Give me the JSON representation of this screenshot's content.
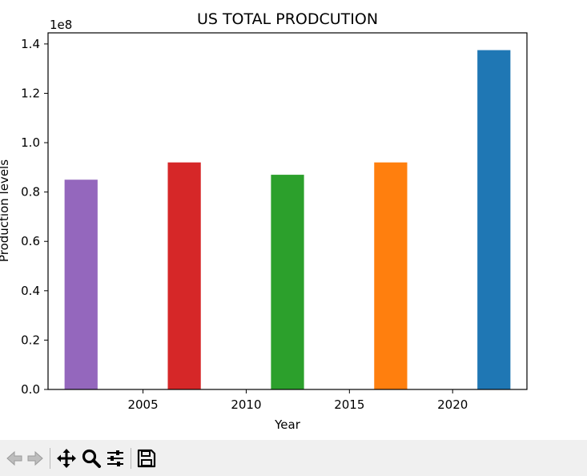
{
  "chart_data": {
    "type": "bar",
    "title": "US TOTAL PRODCUTION",
    "xlabel": "Year",
    "ylabel": "Production levels",
    "y_offset_label": "1e8",
    "x": [
      2002,
      2007,
      2012,
      2017,
      2022
    ],
    "values": [
      0.85,
      0.92,
      0.87,
      0.92,
      1.375
    ],
    "value_scale": 100000000,
    "bar_colors": [
      "#9467bd",
      "#d62728",
      "#2ca02c",
      "#ff7f0e",
      "#1f77b4"
    ],
    "bar_width_years": 1.6,
    "xlim": [
      2000.4,
      2023.6
    ],
    "ylim": [
      0,
      1.445
    ],
    "x_ticks": [
      "2005",
      "2010",
      "2015",
      "2020"
    ],
    "y_ticks": [
      "0.0",
      "0.2",
      "0.4",
      "0.6",
      "0.8",
      "1.0",
      "1.2",
      "1.4"
    ],
    "grid": false
  },
  "toolbar": {
    "buttons": [
      {
        "name": "back-button",
        "icon": "arrow-left-icon"
      },
      {
        "name": "forward-button",
        "icon": "arrow-right-icon"
      },
      {
        "name": "pan-button",
        "icon": "move-icon"
      },
      {
        "name": "zoom-button",
        "icon": "magnifier-icon"
      },
      {
        "name": "configure-subplots-button",
        "icon": "sliders-icon"
      },
      {
        "name": "save-button",
        "icon": "floppy-disk-icon"
      }
    ]
  }
}
